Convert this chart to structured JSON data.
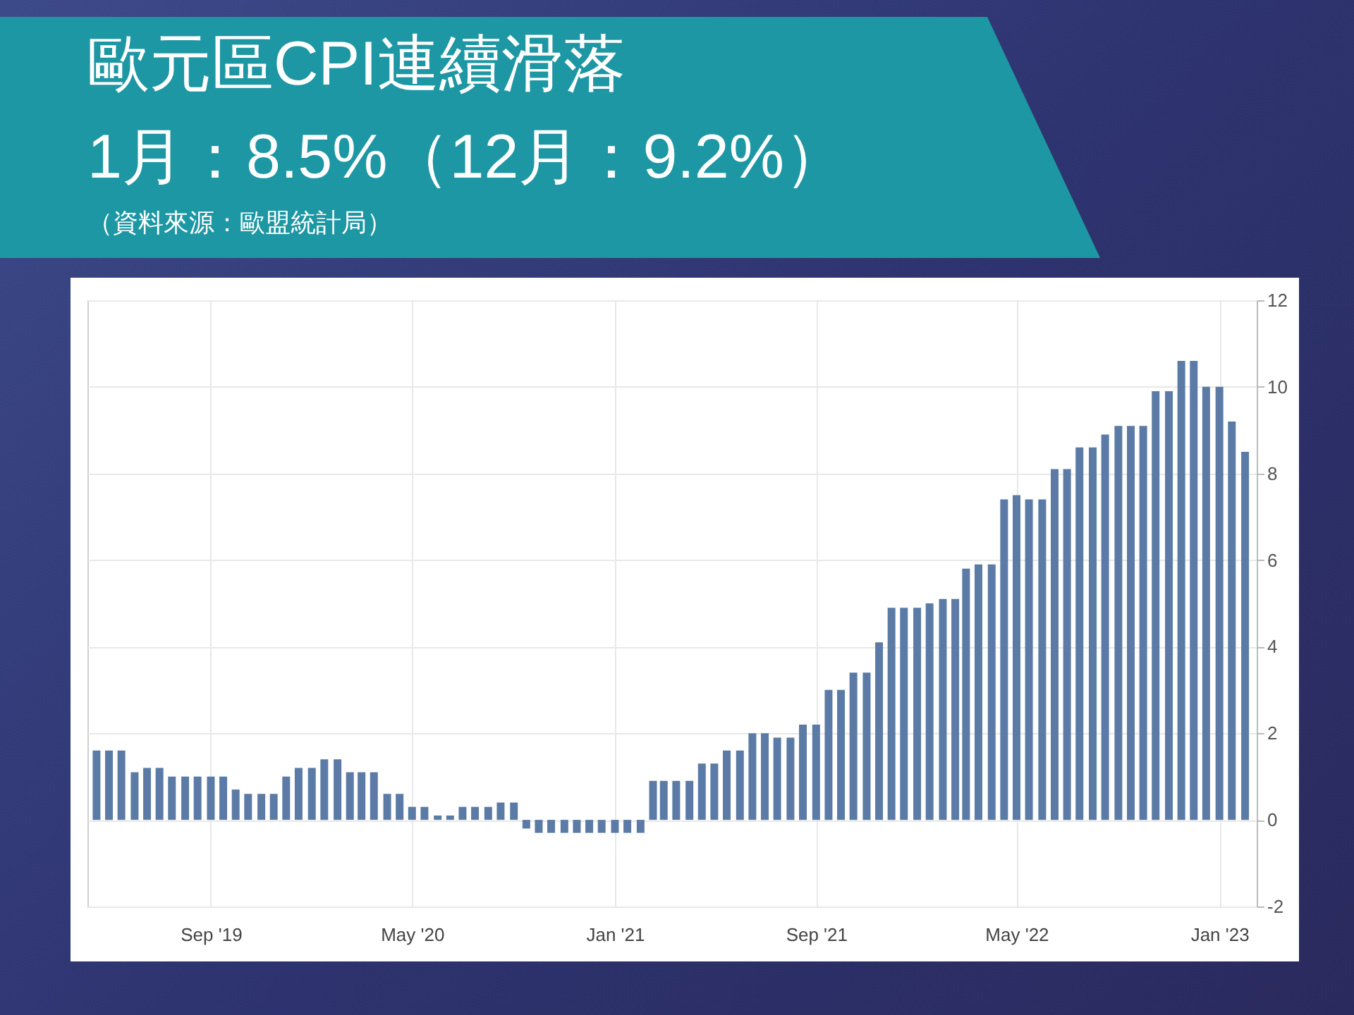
{
  "chart_data": {
    "type": "bar",
    "title": "歐元區CPI連續滑落",
    "subtitle": "1月：8.5%（12月：9.2%）",
    "annotations": [
      "（資料來源：歐盟統計局）"
    ],
    "x": [
      "2019-04-16",
      "2019-05-01",
      "2019-05-16",
      "2019-06-01",
      "2019-06-16",
      "2019-07-01",
      "2019-07-16",
      "2019-08-01",
      "2019-08-16",
      "2019-09-01",
      "2019-09-16",
      "2019-10-01",
      "2019-10-16",
      "2019-11-01",
      "2019-11-16",
      "2019-12-01",
      "2019-12-16",
      "2020-01-01",
      "2020-01-16",
      "2020-02-01",
      "2020-02-16",
      "2020-03-01",
      "2020-03-16",
      "2020-04-01",
      "2020-04-16",
      "2020-05-01",
      "2020-05-16",
      "2020-06-01",
      "2020-06-16",
      "2020-07-01",
      "2020-07-16",
      "2020-08-01",
      "2020-08-16",
      "2020-09-01",
      "2020-09-16",
      "2020-10-01",
      "2020-10-16",
      "2020-11-01",
      "2020-11-16",
      "2020-12-01",
      "2020-12-16",
      "2021-01-01",
      "2021-01-16",
      "2021-02-01",
      "2021-02-16",
      "2021-03-01",
      "2021-03-16",
      "2021-04-01",
      "2021-04-16",
      "2021-05-01",
      "2021-05-16",
      "2021-06-01",
      "2021-06-16",
      "2021-07-01",
      "2021-07-16",
      "2021-08-01",
      "2021-08-16",
      "2021-09-01",
      "2021-09-16",
      "2021-10-01",
      "2021-10-16",
      "2021-11-01",
      "2021-11-16",
      "2021-12-01",
      "2021-12-16",
      "2022-01-01",
      "2022-01-16",
      "2022-02-01",
      "2022-02-16",
      "2022-03-01",
      "2022-03-16",
      "2022-04-01",
      "2022-04-16",
      "2022-05-01",
      "2022-05-16",
      "2022-06-01",
      "2022-06-16",
      "2022-07-01",
      "2022-07-16",
      "2022-08-01",
      "2022-08-16",
      "2022-09-01",
      "2022-09-16",
      "2022-10-01",
      "2022-10-16",
      "2022-11-01",
      "2022-11-16",
      "2022-12-01",
      "2022-12-16",
      "2023-01-01",
      "2023-01-16",
      "2023-02-01"
    ],
    "values": [
      1.6,
      1.6,
      1.6,
      1.1,
      1.2,
      1.2,
      1.0,
      1.0,
      1.0,
      1.0,
      1.0,
      0.7,
      0.6,
      0.6,
      0.6,
      1.0,
      1.2,
      1.2,
      1.4,
      1.4,
      1.1,
      1.1,
      1.1,
      0.6,
      0.6,
      0.3,
      0.3,
      0.1,
      0.1,
      0.3,
      0.3,
      0.3,
      0.4,
      0.4,
      -0.2,
      -0.3,
      -0.3,
      -0.3,
      -0.3,
      -0.3,
      -0.3,
      -0.3,
      -0.3,
      -0.3,
      0.9,
      0.9,
      0.9,
      0.9,
      1.3,
      1.3,
      1.6,
      1.6,
      2.0,
      2.0,
      1.9,
      1.9,
      2.2,
      2.2,
      3.0,
      3.0,
      3.4,
      3.4,
      4.1,
      4.9,
      4.9,
      4.9,
      5.0,
      5.1,
      5.1,
      5.8,
      5.9,
      5.9,
      7.4,
      7.5,
      7.4,
      7.4,
      8.1,
      8.1,
      8.6,
      8.6,
      8.9,
      9.1,
      9.1,
      9.1,
      9.9,
      9.9,
      10.6,
      10.6,
      10.0,
      10.0,
      9.2,
      8.5
    ],
    "color": "#5b7ba6",
    "xlim": [
      "2019-04-05",
      "2023-02-15"
    ],
    "xticks": [
      {
        "value": "2019-09-01",
        "label": "Sep '19"
      },
      {
        "value": "2020-05-01",
        "label": "May '20"
      },
      {
        "value": "2021-01-01",
        "label": "Jan '21"
      },
      {
        "value": "2021-09-01",
        "label": "Sep '21"
      },
      {
        "value": "2022-05-01",
        "label": "May '22"
      },
      {
        "value": "2023-01-01",
        "label": "Jan '23"
      }
    ],
    "ylim": [
      -2,
      12
    ],
    "yticks": [
      -2,
      0,
      2,
      4,
      6,
      8,
      10,
      12
    ],
    "grid": true
  }
}
